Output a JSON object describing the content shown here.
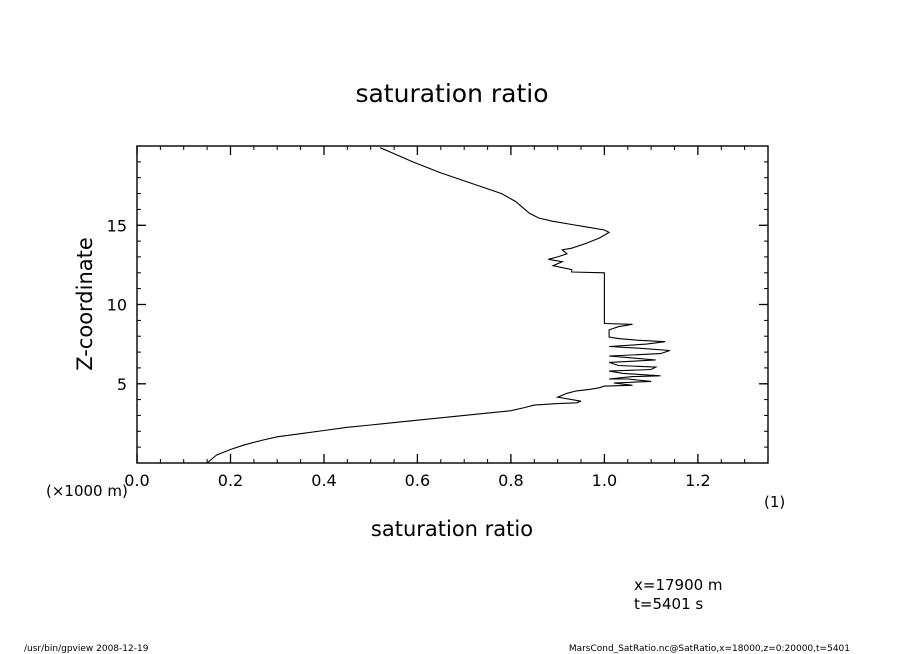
{
  "chart_data": {
    "type": "line",
    "title": "saturation ratio",
    "xlabel": "saturation ratio",
    "ylabel": "Z-coordinate",
    "y_unit_label": "(×1000 m)",
    "x_unit_label": "(1)",
    "xlim": [
      0.0,
      1.35
    ],
    "ylim": [
      0,
      20
    ],
    "x_ticks": [
      0.0,
      0.2,
      0.4,
      0.6,
      0.8,
      1.0,
      1.2
    ],
    "x_tick_labels": [
      "0.0",
      "0.2",
      "0.4",
      "0.6",
      "0.8",
      "1.0",
      "1.2"
    ],
    "y_ticks": [
      5,
      10,
      15
    ],
    "y_tick_labels": [
      "5",
      "10",
      "15"
    ],
    "x_minor_step": 0.05,
    "y_minor_step": 1,
    "grid": false,
    "series": [
      {
        "points": [
          [
            0.15,
            0.0
          ],
          [
            0.17,
            0.5
          ],
          [
            0.2,
            0.85
          ],
          [
            0.23,
            1.15
          ],
          [
            0.27,
            1.45
          ],
          [
            0.3,
            1.65
          ],
          [
            0.35,
            1.85
          ],
          [
            0.4,
            2.05
          ],
          [
            0.45,
            2.25
          ],
          [
            0.5,
            2.4
          ],
          [
            0.55,
            2.55
          ],
          [
            0.6,
            2.7
          ],
          [
            0.65,
            2.85
          ],
          [
            0.7,
            3.0
          ],
          [
            0.75,
            3.15
          ],
          [
            0.8,
            3.3
          ],
          [
            0.83,
            3.5
          ],
          [
            0.85,
            3.65
          ],
          [
            0.9,
            3.75
          ],
          [
            0.94,
            3.8
          ],
          [
            0.95,
            3.9
          ],
          [
            0.9,
            4.15
          ],
          [
            0.92,
            4.4
          ],
          [
            0.94,
            4.55
          ],
          [
            0.97,
            4.65
          ],
          [
            0.99,
            4.75
          ],
          [
            1.0,
            4.85
          ],
          [
            1.06,
            4.9
          ],
          [
            1.02,
            5.05
          ],
          [
            1.1,
            5.15
          ],
          [
            1.05,
            5.3
          ],
          [
            1.01,
            5.3
          ],
          [
            1.06,
            5.45
          ],
          [
            1.12,
            5.5
          ],
          [
            1.04,
            5.65
          ],
          [
            1.01,
            5.8
          ],
          [
            1.1,
            5.9
          ],
          [
            1.11,
            6.05
          ],
          [
            1.03,
            6.15
          ],
          [
            1.01,
            6.35
          ],
          [
            1.11,
            6.5
          ],
          [
            1.05,
            6.65
          ],
          [
            1.01,
            6.75
          ],
          [
            1.12,
            6.9
          ],
          [
            1.14,
            7.1
          ],
          [
            1.07,
            7.25
          ],
          [
            1.01,
            7.35
          ],
          [
            1.09,
            7.5
          ],
          [
            1.13,
            7.65
          ],
          [
            1.07,
            7.75
          ],
          [
            1.03,
            7.85
          ],
          [
            1.01,
            7.95
          ],
          [
            1.01,
            8.4
          ],
          [
            1.03,
            8.6
          ],
          [
            1.06,
            8.75
          ],
          [
            1.0,
            8.8
          ],
          [
            1.0,
            9.1
          ],
          [
            1.0,
            12.0
          ],
          [
            0.93,
            12.05
          ],
          [
            0.93,
            12.2
          ],
          [
            0.89,
            12.45
          ],
          [
            0.91,
            12.7
          ],
          [
            0.88,
            12.85
          ],
          [
            0.9,
            13.0
          ],
          [
            0.92,
            13.2
          ],
          [
            0.91,
            13.45
          ],
          [
            0.93,
            13.55
          ],
          [
            0.96,
            13.85
          ],
          [
            0.99,
            14.2
          ],
          [
            1.01,
            14.55
          ],
          [
            1.0,
            14.7
          ],
          [
            0.96,
            14.9
          ],
          [
            0.93,
            15.05
          ],
          [
            0.89,
            15.25
          ],
          [
            0.86,
            15.45
          ],
          [
            0.84,
            15.75
          ],
          [
            0.83,
            16.0
          ],
          [
            0.81,
            16.5
          ],
          [
            0.78,
            17.0
          ],
          [
            0.73,
            17.5
          ],
          [
            0.65,
            18.3
          ],
          [
            0.59,
            19.0
          ],
          [
            0.52,
            19.9
          ]
        ]
      }
    ]
  },
  "annotations": {
    "position_line1": "x=17900 m",
    "position_line2": "t=5401 s"
  },
  "footer": {
    "left": "/usr/bin/gpview   2008-12-19",
    "right": "MarsCond_SatRatio.nc@SatRatio,x=18000,z=0:20000,t=5401"
  }
}
